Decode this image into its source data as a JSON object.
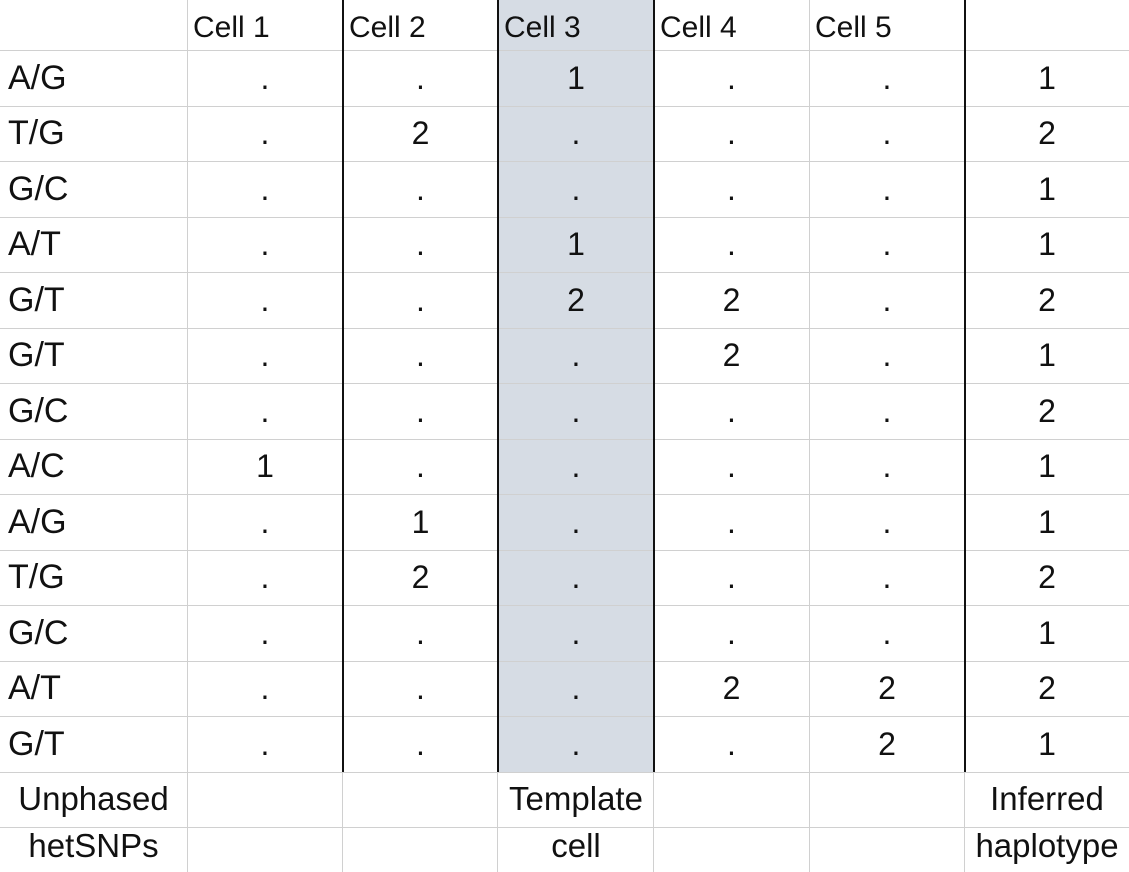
{
  "table": {
    "headers": [
      "",
      "Cell 1",
      "Cell 2",
      "Cell 3",
      "Cell 4",
      "Cell 5",
      ""
    ],
    "template_highlight_color": "#d6dce4",
    "rows": [
      {
        "snp": "A/G",
        "cells": [
          ".",
          ".",
          "1",
          ".",
          "."
        ],
        "haplotype": "1"
      },
      {
        "snp": "T/G",
        "cells": [
          ".",
          "2",
          ".",
          ".",
          "."
        ],
        "haplotype": "2"
      },
      {
        "snp": "G/C",
        "cells": [
          ".",
          ".",
          ".",
          ".",
          "."
        ],
        "haplotype": "1"
      },
      {
        "snp": "A/T",
        "cells": [
          ".",
          ".",
          "1",
          ".",
          "."
        ],
        "haplotype": "1"
      },
      {
        "snp": "G/T",
        "cells": [
          ".",
          ".",
          "2",
          "2",
          "."
        ],
        "haplotype": "2"
      },
      {
        "snp": "G/T",
        "cells": [
          ".",
          ".",
          ".",
          "2",
          "."
        ],
        "haplotype": "1"
      },
      {
        "snp": "G/C",
        "cells": [
          ".",
          ".",
          ".",
          ".",
          "."
        ],
        "haplotype": "2"
      },
      {
        "snp": "A/C",
        "cells": [
          "1",
          ".",
          ".",
          ".",
          "."
        ],
        "haplotype": "1"
      },
      {
        "snp": "A/G",
        "cells": [
          ".",
          "1",
          ".",
          ".",
          "."
        ],
        "haplotype": "1"
      },
      {
        "snp": "T/G",
        "cells": [
          ".",
          "2",
          ".",
          ".",
          "."
        ],
        "haplotype": "2"
      },
      {
        "snp": "G/C",
        "cells": [
          ".",
          ".",
          ".",
          ".",
          "."
        ],
        "haplotype": "1"
      },
      {
        "snp": "A/T",
        "cells": [
          ".",
          ".",
          ".",
          "2",
          "2"
        ],
        "haplotype": "2"
      },
      {
        "snp": "G/T",
        "cells": [
          ".",
          ".",
          ".",
          ".",
          "2"
        ],
        "haplotype": "1"
      }
    ],
    "footer": {
      "snp_label": [
        "Unphased",
        "hetSNPs"
      ],
      "template_label": [
        "Template",
        "cell"
      ],
      "haplotype_label": [
        "Inferred",
        "haplotype"
      ]
    }
  }
}
